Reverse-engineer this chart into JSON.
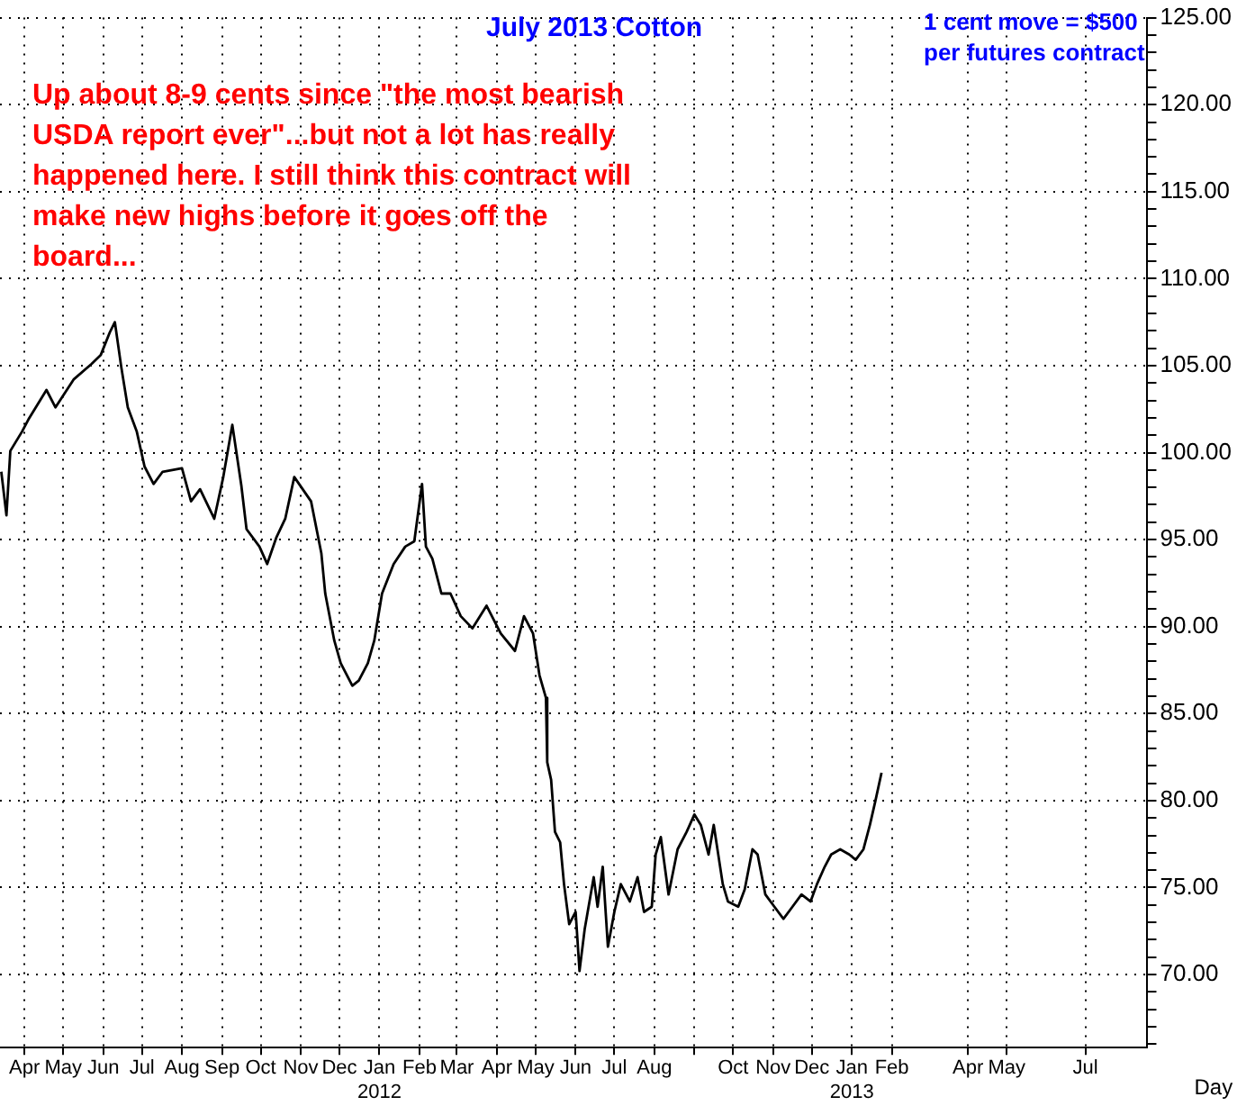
{
  "chart_data": {
    "type": "line",
    "title": "July 2013 Cotton",
    "xlabel": "Day",
    "annotations": [
      "Up about 8-9 cents since \"the most bearish USDA report ever\"...but not a lot has really happened here. I still think this contract will make new highs before it goes off the board...",
      "1 cent move = $500 per futures contract"
    ],
    "marker": "none",
    "grid": true,
    "xlim": [
      "2011-03-13",
      "2013-08-18"
    ],
    "xticks": [
      {
        "value": "2011-04",
        "label": "Apr"
      },
      {
        "value": "2011-05",
        "label": "May"
      },
      {
        "value": "2011-06",
        "label": "Jun"
      },
      {
        "value": "2011-07",
        "label": "Jul"
      },
      {
        "value": "2011-08",
        "label": "Aug"
      },
      {
        "value": "2011-09",
        "label": "Sep"
      },
      {
        "value": "2011-10",
        "label": "Oct"
      },
      {
        "value": "2011-11",
        "label": "Nov"
      },
      {
        "value": "2011-12",
        "label": "Dec"
      },
      {
        "value": "2012-01",
        "label": "Jan\n2012"
      },
      {
        "value": "2012-02",
        "label": "Feb"
      },
      {
        "value": "2012-03",
        "label": "Mar"
      },
      {
        "value": "2012-04",
        "label": "Apr"
      },
      {
        "value": "2012-05",
        "label": "May"
      },
      {
        "value": "2012-06",
        "label": "Jun"
      },
      {
        "value": "2012-07",
        "label": "Jul"
      },
      {
        "value": "2012-08",
        "label": "Aug"
      },
      {
        "value": "2012-09",
        "label": null
      },
      {
        "value": "2012-10",
        "label": "Oct"
      },
      {
        "value": "2012-11",
        "label": "Nov"
      },
      {
        "value": "2012-12",
        "label": "Dec"
      },
      {
        "value": "2013-01",
        "label": "Jan\n2013"
      },
      {
        "value": "2013-02",
        "label": "Feb"
      },
      {
        "value": "2013-04",
        "label": "Apr"
      },
      {
        "value": "2013-05",
        "label": "May"
      },
      {
        "value": "2013-07",
        "label": "Jul"
      }
    ],
    "ylim": [
      65.8,
      125
    ],
    "yticks": [
      {
        "value": 66,
        "label": null
      },
      {
        "value": 67,
        "label": null
      },
      {
        "value": 68,
        "label": null
      },
      {
        "value": 69,
        "label": null
      },
      {
        "value": 70,
        "label": "70.00"
      },
      {
        "value": 71,
        "label": null
      },
      {
        "value": 72,
        "label": null
      },
      {
        "value": 73,
        "label": null
      },
      {
        "value": 74,
        "label": null
      },
      {
        "value": 75,
        "label": "75.00"
      },
      {
        "value": 76,
        "label": null
      },
      {
        "value": 77,
        "label": null
      },
      {
        "value": 78,
        "label": null
      },
      {
        "value": 79,
        "label": null
      },
      {
        "value": 80,
        "label": "80.00"
      },
      {
        "value": 81,
        "label": null
      },
      {
        "value": 82,
        "label": null
      },
      {
        "value": 83,
        "label": null
      },
      {
        "value": 84,
        "label": null
      },
      {
        "value": 85,
        "label": "85.00"
      },
      {
        "value": 86,
        "label": null
      },
      {
        "value": 87,
        "label": null
      },
      {
        "value": 88,
        "label": null
      },
      {
        "value": 89,
        "label": null
      },
      {
        "value": 90,
        "label": "90.00"
      },
      {
        "value": 91,
        "label": null
      },
      {
        "value": 92,
        "label": null
      },
      {
        "value": 93,
        "label": null
      },
      {
        "value": 94,
        "label": null
      },
      {
        "value": 95,
        "label": "95.00"
      },
      {
        "value": 96,
        "label": null
      },
      {
        "value": 97,
        "label": null
      },
      {
        "value": 98,
        "label": null
      },
      {
        "value": 99,
        "label": null
      },
      {
        "value": 100,
        "label": "100.00"
      },
      {
        "value": 101,
        "label": null
      },
      {
        "value": 102,
        "label": null
      },
      {
        "value": 103,
        "label": null
      },
      {
        "value": 104,
        "label": null
      },
      {
        "value": 105,
        "label": "105.00"
      },
      {
        "value": 106,
        "label": null
      },
      {
        "value": 107,
        "label": null
      },
      {
        "value": 108,
        "label": null
      },
      {
        "value": 109,
        "label": null
      },
      {
        "value": 110,
        "label": "110.00"
      },
      {
        "value": 111,
        "label": null
      },
      {
        "value": 112,
        "label": null
      },
      {
        "value": 113,
        "label": null
      },
      {
        "value": 114,
        "label": null
      },
      {
        "value": 115,
        "label": "115.00"
      },
      {
        "value": 116,
        "label": null
      },
      {
        "value": 117,
        "label": null
      },
      {
        "value": 118,
        "label": null
      },
      {
        "value": 119,
        "label": null
      },
      {
        "value": 120,
        "label": "120.00"
      },
      {
        "value": 121,
        "label": null
      },
      {
        "value": 122,
        "label": null
      },
      {
        "value": 123,
        "label": null
      },
      {
        "value": 124,
        "label": null
      },
      {
        "value": 125,
        "label": "125.00"
      }
    ],
    "x": [
      "2011-03-14",
      "2011-03-18",
      "2011-03-21",
      "2011-03-30",
      "2011-04-04",
      "2011-04-18",
      "2011-04-25",
      "2011-05-09",
      "2011-05-23",
      "2011-05-30",
      "2011-06-06",
      "2011-06-10",
      "2011-06-15",
      "2011-06-20",
      "2011-06-27",
      "2011-07-03",
      "2011-07-10",
      "2011-07-17",
      "2011-08-01",
      "2011-08-08",
      "2011-08-15",
      "2011-08-26",
      "2011-09-02",
      "2011-09-09",
      "2011-09-16",
      "2011-09-20",
      "2011-09-30",
      "2011-10-06",
      "2011-10-13",
      "2011-10-20",
      "2011-10-27",
      "2011-11-09",
      "2011-11-17",
      "2011-11-20",
      "2011-11-27",
      "2011-12-02",
      "2011-12-11",
      "2011-12-16",
      "2011-12-23",
      "2011-12-28",
      "2012-01-03",
      "2012-01-12",
      "2012-01-21",
      "2012-01-28",
      "2012-02-03",
      "2012-02-06",
      "2012-02-11",
      "2012-02-18",
      "2012-02-25",
      "2012-03-04",
      "2012-03-13",
      "2012-03-24",
      "2012-04-04",
      "2012-04-15",
      "2012-04-22",
      "2012-04-29",
      "2012-05-04",
      "2012-05-09",
      "2012-05-10",
      "2012-05-13",
      "2012-05-16",
      "2012-05-20",
      "2012-05-23",
      "2012-05-27",
      "2012-06-01",
      "2012-06-04",
      "2012-06-08",
      "2012-06-15",
      "2012-06-18",
      "2012-06-22",
      "2012-06-26",
      "2012-07-01",
      "2012-07-06",
      "2012-07-13",
      "2012-07-19",
      "2012-07-24",
      "2012-07-30",
      "2012-08-02",
      "2012-08-06",
      "2012-08-12",
      "2012-08-19",
      "2012-08-26",
      "2012-09-01",
      "2012-09-06",
      "2012-09-12",
      "2012-09-16",
      "2012-09-23",
      "2012-09-27",
      "2012-10-05",
      "2012-10-10",
      "2012-10-16",
      "2012-10-20",
      "2012-10-26",
      "2012-11-02",
      "2012-11-09",
      "2012-11-16",
      "2012-11-23",
      "2012-11-30",
      "2012-12-05",
      "2012-12-11",
      "2012-12-16",
      "2012-12-23",
      "2012-12-30",
      "2013-01-04",
      "2013-01-10",
      "2013-01-15",
      "2013-01-19",
      "2013-01-24"
    ],
    "series": [
      {
        "color": "#000000",
        "values": [
          98.9,
          96.4,
          100.1,
          101.2,
          101.9,
          103.6,
          102.6,
          104.2,
          105.1,
          105.6,
          106.9,
          107.5,
          104.9,
          102.6,
          101.2,
          99.2,
          98.2,
          98.9,
          99.1,
          97.2,
          97.9,
          96.2,
          98.6,
          101.6,
          98.1,
          95.6,
          94.6,
          93.6,
          95.1,
          96.2,
          98.6,
          97.2,
          94.2,
          91.9,
          89.2,
          87.9,
          86.6,
          86.9,
          87.9,
          89.2,
          91.9,
          93.6,
          94.6,
          94.9,
          98.2,
          94.6,
          93.9,
          91.9,
          91.9,
          90.6,
          89.9,
          91.2,
          89.6,
          88.6,
          90.6,
          89.6,
          87.2,
          85.9,
          82.2,
          81.2,
          78.2,
          77.6,
          75.2,
          72.9,
          73.6,
          70.2,
          72.6,
          75.6,
          73.9,
          76.2,
          71.6,
          73.6,
          75.2,
          74.2,
          75.6,
          73.6,
          73.9,
          76.9,
          77.9,
          74.6,
          77.2,
          78.2,
          79.2,
          78.6,
          76.9,
          78.6,
          75.2,
          74.2,
          73.9,
          74.9,
          77.2,
          76.9,
          74.6,
          73.9,
          73.2,
          73.9,
          74.6,
          74.2,
          75.2,
          76.2,
          76.9,
          77.2,
          76.9,
          76.6,
          77.2,
          78.6,
          79.9,
          81.6
        ]
      }
    ]
  }
}
